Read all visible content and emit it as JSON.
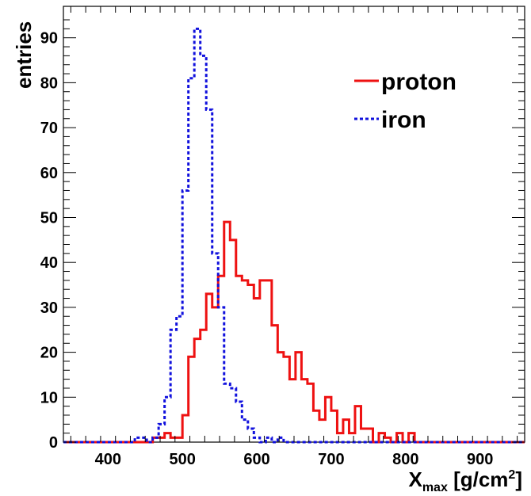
{
  "chart_data": {
    "type": "histogram",
    "xlabel": {
      "main": "X",
      "sub": "max",
      "rest": " [g/cm",
      "sup": "2",
      "end": "]"
    },
    "ylabel": "entries",
    "xlim": [
      340,
      960
    ],
    "ylim": [
      0,
      97
    ],
    "bin_width": 8,
    "xticks": [
      400,
      500,
      600,
      700,
      800,
      900
    ],
    "yticks": [
      0,
      10,
      20,
      30,
      40,
      50,
      60,
      70,
      80,
      90
    ],
    "grid": false,
    "legend_position": "top-right",
    "series": [
      {
        "name": "proton",
        "color": "#ee1111",
        "style": "solid",
        "bins": [
          [
            460,
            1
          ],
          [
            468,
            1
          ],
          [
            476,
            2
          ],
          [
            484,
            1
          ],
          [
            492,
            1
          ],
          [
            500,
            6
          ],
          [
            508,
            19
          ],
          [
            516,
            23
          ],
          [
            524,
            25
          ],
          [
            532,
            33
          ],
          [
            540,
            30
          ],
          [
            548,
            37
          ],
          [
            556,
            49
          ],
          [
            564,
            45
          ],
          [
            572,
            37
          ],
          [
            580,
            36
          ],
          [
            588,
            35
          ],
          [
            596,
            32
          ],
          [
            604,
            36
          ],
          [
            612,
            36
          ],
          [
            620,
            26
          ],
          [
            628,
            20
          ],
          [
            636,
            19
          ],
          [
            644,
            14
          ],
          [
            652,
            20
          ],
          [
            660,
            14
          ],
          [
            668,
            13
          ],
          [
            676,
            7
          ],
          [
            684,
            5
          ],
          [
            692,
            10
          ],
          [
            700,
            7
          ],
          [
            708,
            2
          ],
          [
            716,
            5
          ],
          [
            724,
            2
          ],
          [
            732,
            8
          ],
          [
            740,
            3
          ],
          [
            748,
            3
          ],
          [
            756,
            0
          ],
          [
            764,
            2
          ],
          [
            772,
            1
          ],
          [
            780,
            0
          ],
          [
            788,
            2
          ],
          [
            796,
            0
          ],
          [
            804,
            2
          ],
          [
            812,
            0
          ],
          [
            880,
            1
          ]
        ]
      },
      {
        "name": "iron",
        "color": "#1111dd",
        "style": "dashed",
        "bins": [
          [
            436,
            1
          ],
          [
            444,
            1
          ],
          [
            452,
            0
          ],
          [
            460,
            1
          ],
          [
            468,
            4
          ],
          [
            476,
            10
          ],
          [
            484,
            25
          ],
          [
            492,
            28
          ],
          [
            500,
            56
          ],
          [
            508,
            81
          ],
          [
            516,
            92
          ],
          [
            524,
            86
          ],
          [
            532,
            74
          ],
          [
            540,
            42
          ],
          [
            548,
            30
          ],
          [
            556,
            13
          ],
          [
            564,
            12
          ],
          [
            572,
            9
          ],
          [
            580,
            5
          ],
          [
            588,
            3
          ],
          [
            596,
            1
          ],
          [
            612,
            1
          ],
          [
            620,
            0
          ],
          [
            628,
            1
          ]
        ]
      }
    ]
  }
}
